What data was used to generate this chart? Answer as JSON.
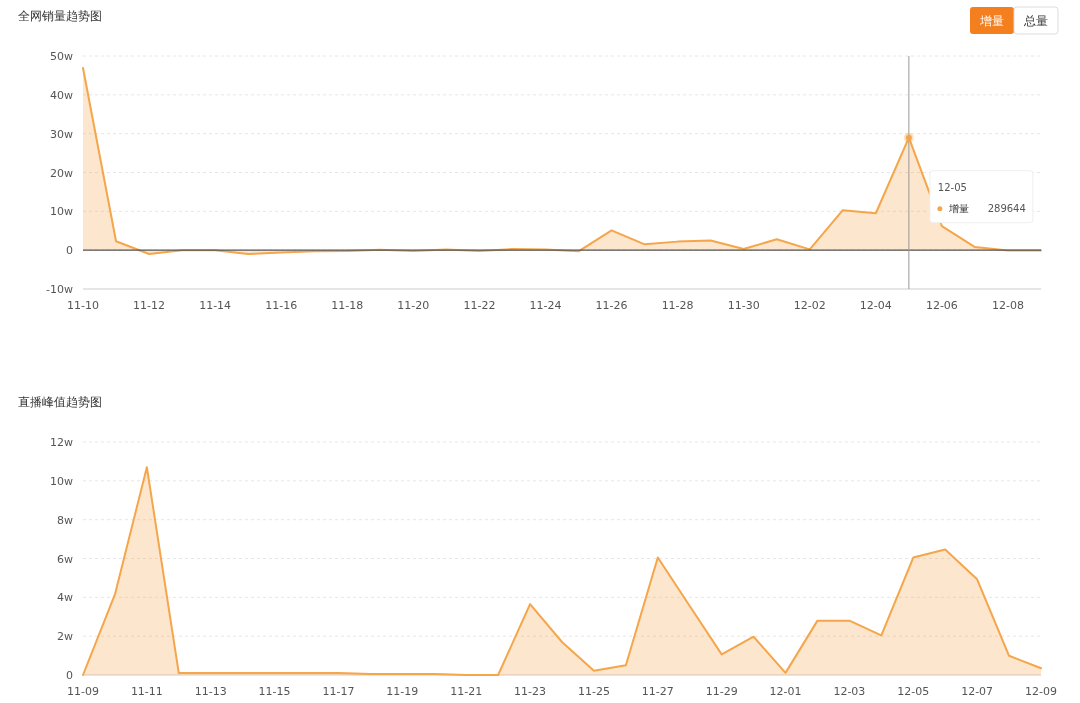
{
  "chart_data": [
    {
      "type": "area",
      "title": "全网销量趋势图",
      "x": [
        "--11-10",
        "--11-11",
        "--11-12",
        "--11-13",
        "--11-14",
        "--11-15",
        "--11-16",
        "--11-17",
        "--11-18",
        "--11-19",
        "--11-20",
        "--11-21",
        "--11-22",
        "--11-23",
        "--11-24",
        "--11-25",
        "--11-26",
        "--11-27",
        "--11-28",
        "--11-29",
        "--11-30",
        "--12-01",
        "--12-02",
        "--12-03",
        "--12-04",
        "--12-05",
        "--12-06",
        "--12-07",
        "--12-08",
        "--12-09"
      ],
      "series": [
        {
          "name": "增量",
          "color": "#f5a54a",
          "values": [
            46.9,
            2.3,
            -1,
            0,
            0,
            -1,
            -0.6,
            -0.3,
            -0.2,
            0.1,
            -0.2,
            0.2,
            -0.2,
            0.3,
            0.2,
            -0.3,
            5.1,
            1.5,
            2.2,
            2.5,
            0.3,
            2.8,
            0.2,
            10.3,
            9.5,
            28.9644,
            6.2,
            0.8,
            -0.1,
            -0.1
          ]
        }
      ],
      "xlim": [
        "--11-10",
        "--12-09"
      ],
      "xticks": [
        {
          "value": "--11-10",
          "label": "11-10"
        },
        {
          "value": "--11-12",
          "label": "11-12"
        },
        {
          "value": "--11-14",
          "label": "11-14"
        },
        {
          "value": "--11-16",
          "label": "11-16"
        },
        {
          "value": "--11-18",
          "label": "11-18"
        },
        {
          "value": "--11-20",
          "label": "11-20"
        },
        {
          "value": "--11-22",
          "label": "11-22"
        },
        {
          "value": "--11-24",
          "label": "11-24"
        },
        {
          "value": "--11-26",
          "label": "11-26"
        },
        {
          "value": "--11-28",
          "label": "11-28"
        },
        {
          "value": "--11-30",
          "label": "11-30"
        },
        {
          "value": "--12-02",
          "label": "12-02"
        },
        {
          "value": "--12-04",
          "label": "12-04"
        },
        {
          "value": "--12-06",
          "label": "12-06"
        },
        {
          "value": "--12-08",
          "label": "12-08"
        }
      ],
      "ylim": [
        -10,
        50
      ],
      "yticks": [
        {
          "value": -10,
          "label": "-10w"
        },
        0,
        {
          "value": 10,
          "label": "10w"
        },
        {
          "value": 20,
          "label": "20w"
        },
        {
          "value": 30,
          "label": "30w"
        },
        {
          "value": 40,
          "label": "40w"
        },
        {
          "value": 50,
          "label": "50w"
        }
      ],
      "grid": "y",
      "ref_lines": [
        {
          "axis": "y",
          "value": 0,
          "color": "#555555"
        },
        {
          "axis": "x",
          "value": "--12-05",
          "color": "#999999"
        }
      ],
      "annotations": [
        "增量",
        "总量",
        "12-05",
        "289644"
      ]
    },
    {
      "type": "area",
      "title": "直播峰值趋势图",
      "categories": [
        "11-09",
        null,
        "11-11",
        null,
        "11-13",
        null,
        "11-15",
        null,
        "11-17",
        null,
        "11-19",
        null,
        "11-21",
        null,
        "11-23",
        null,
        "11-25",
        null,
        "11-27",
        null,
        "11-29",
        null,
        "12-01",
        null,
        "12-03",
        null,
        "12-05",
        null,
        "12-07",
        null,
        "12-09"
      ],
      "series": [
        {
          "color": "#f5a54a",
          "values": [
            0,
            4.15,
            10.7,
            0.1,
            0.1,
            0.1,
            0.1,
            0.1,
            0.1,
            0.05,
            0.05,
            0.05,
            0,
            0,
            3.65,
            1.7,
            0.22,
            0.5,
            6.05,
            3.55,
            1.06,
            1.97,
            0.11,
            2.8,
            2.8,
            2.04,
            6.05,
            6.46,
            4.93,
            0.99,
            0.35
          ]
        }
      ],
      "ylim": [
        0,
        12
      ],
      "yticks": [
        0,
        {
          "value": 2,
          "label": "2w"
        },
        {
          "value": 4,
          "label": "4w"
        },
        {
          "value": 6,
          "label": "6w"
        },
        {
          "value": 8,
          "label": "8w"
        },
        {
          "value": 10,
          "label": "10w"
        },
        {
          "value": 12,
          "label": "12w"
        }
      ],
      "grid": "y"
    }
  ]
}
